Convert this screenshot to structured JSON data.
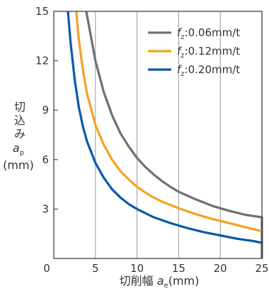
{
  "chart_data": {
    "type": "line",
    "xlabel": {
      "prefix": "切削幅 ",
      "var": "a",
      "sub": "e",
      "unit": "(mm)"
    },
    "ylabel": {
      "line1": "切",
      "line2": "込",
      "line3": "み",
      "var": "a",
      "sub": "p",
      "unit": "(mm)"
    },
    "xlim": [
      0,
      25
    ],
    "ylim": [
      0,
      15
    ],
    "x_ticks": [
      0,
      5,
      10,
      15,
      20,
      25
    ],
    "y_ticks": [
      3,
      6,
      9,
      12,
      15
    ],
    "grid": {
      "vertical": true,
      "horizontal": false
    },
    "legend_position": "top-right",
    "series": [
      {
        "name": {
          "var": "f",
          "sub": "z",
          "text": ":0.06mm/t"
        },
        "color": "#707070",
        "points": [
          [
            3.9,
            15
          ],
          [
            5,
            12
          ],
          [
            6,
            10.1
          ],
          [
            7,
            8.7
          ],
          [
            8,
            7.6
          ],
          [
            9,
            6.8
          ],
          [
            10,
            6.1
          ],
          [
            11,
            5.55
          ],
          [
            12,
            5.1
          ],
          [
            13,
            4.7
          ],
          [
            14,
            4.35
          ],
          [
            15,
            4.05
          ],
          [
            17,
            3.6
          ],
          [
            19,
            3.2
          ],
          [
            21,
            2.9
          ],
          [
            23,
            2.65
          ],
          [
            25,
            2.5
          ],
          [
            25,
            0
          ]
        ]
      },
      {
        "name": {
          "var": "f",
          "sub": "z",
          "text": ":0.12mm/t"
        },
        "color": "#f5a023",
        "points": [
          [
            2.7,
            15
          ],
          [
            3,
            13.3
          ],
          [
            3.5,
            11.4
          ],
          [
            4,
            10
          ],
          [
            5,
            8.1
          ],
          [
            6,
            6.9
          ],
          [
            7,
            6
          ],
          [
            8,
            5.3
          ],
          [
            9,
            4.8
          ],
          [
            10,
            4.35
          ],
          [
            11,
            4
          ],
          [
            12,
            3.7
          ],
          [
            13,
            3.45
          ],
          [
            15,
            3.05
          ],
          [
            17,
            2.7
          ],
          [
            19,
            2.4
          ],
          [
            21,
            2.15
          ],
          [
            23,
            1.9
          ],
          [
            25,
            1.65
          ]
        ]
      },
      {
        "name": {
          "var": "f",
          "sub": "z",
          "text": ":0.20mm/t"
        },
        "color": "#0a58a8",
        "points": [
          [
            1.7,
            15
          ],
          [
            2,
            13.2
          ],
          [
            2.5,
            10.9
          ],
          [
            3,
            9.2
          ],
          [
            3.5,
            8
          ],
          [
            4,
            7.1
          ],
          [
            5,
            5.8
          ],
          [
            6,
            4.9
          ],
          [
            7,
            4.2
          ],
          [
            8,
            3.7
          ],
          [
            9,
            3.3
          ],
          [
            10,
            3
          ],
          [
            12,
            2.5
          ],
          [
            14,
            2.15
          ],
          [
            16,
            1.85
          ],
          [
            18,
            1.6
          ],
          [
            20,
            1.4
          ],
          [
            22,
            1.2
          ],
          [
            24,
            1.05
          ],
          [
            25,
            0.95
          ]
        ]
      }
    ]
  }
}
